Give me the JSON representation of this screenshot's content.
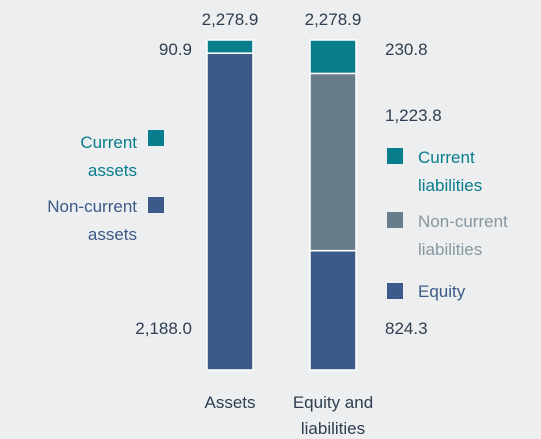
{
  "chart_data": {
    "type": "stacked-bar",
    "categories": [
      "Assets",
      "Equity and liabilities"
    ],
    "ylim": [
      0,
      2278.9
    ],
    "totals": [
      2278.9,
      2278.9
    ],
    "total_labels": [
      "2,278.9",
      "2,278.9"
    ],
    "series": [
      {
        "name": "Current assets",
        "color": "#0a7d8c",
        "values": [
          90.9,
          null
        ],
        "value_labels": [
          "90.9",
          null
        ]
      },
      {
        "name": "Non-current assets",
        "color": "#3b5a88",
        "values": [
          2188.0,
          null
        ],
        "value_labels": [
          "2,188.0",
          null
        ]
      },
      {
        "name": "Current liabilities",
        "color": "#0a7d8c",
        "values": [
          null,
          230.8
        ],
        "value_labels": [
          null,
          "230.8"
        ]
      },
      {
        "name": "Non-current liabilities",
        "color": "#687c89",
        "values": [
          null,
          1223.8
        ],
        "value_labels": [
          null,
          "1,223.8"
        ]
      },
      {
        "name": "Equity",
        "color": "#3b5a88",
        "values": [
          null,
          824.3
        ],
        "value_labels": [
          null,
          "824.3"
        ]
      }
    ]
  }
}
